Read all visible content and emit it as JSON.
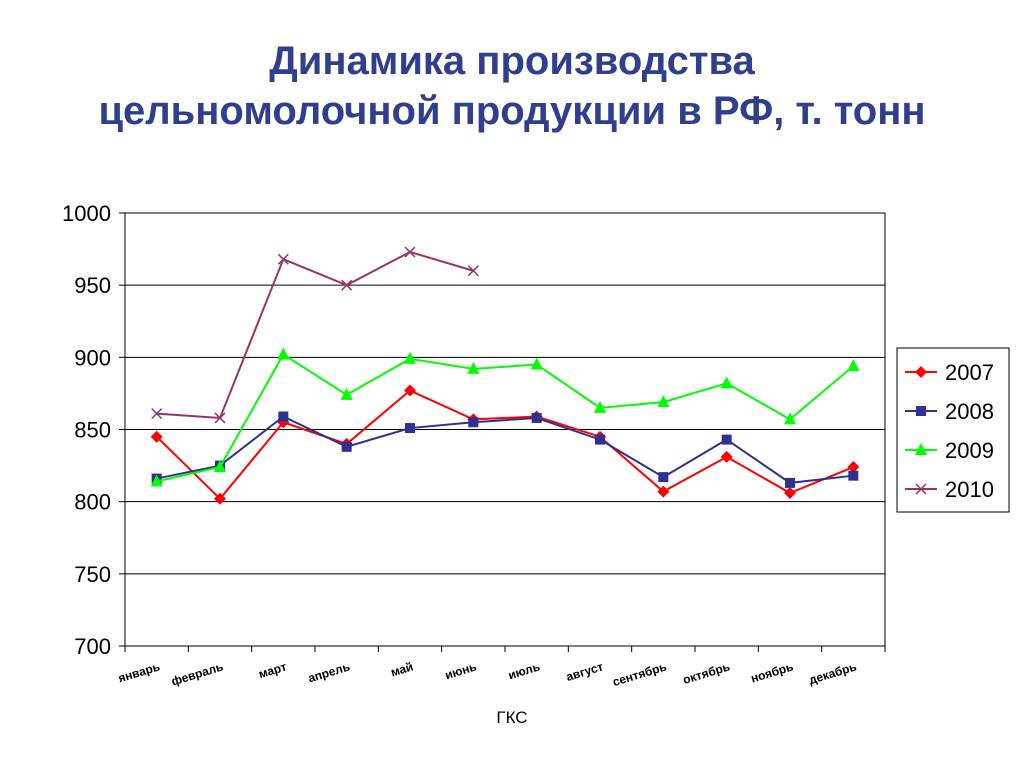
{
  "title_line1": "Динамика производства",
  "title_line2": "цельномолочной продукции в РФ, т. тонн",
  "source": "ГКС",
  "chart_data": {
    "type": "line",
    "title": "Динамика производства цельномолочной продукции в РФ, т. тонн",
    "xlabel": "",
    "ylabel": "",
    "ylim": [
      700,
      1000
    ],
    "yticks": [
      1000,
      950,
      900,
      850,
      800,
      750,
      700
    ],
    "grid": true,
    "legend_position": "right",
    "categories": [
      "январь",
      "февраль",
      "март",
      "апрель",
      "май",
      "июнь",
      "июль",
      "август",
      "сентябрь",
      "октябрь",
      "ноябрь",
      "декабрь"
    ],
    "series": [
      {
        "name": "2007",
        "color": "#ff0000",
        "marker": "diamond",
        "values": [
          845,
          802,
          855,
          840,
          877,
          857,
          859,
          845,
          807,
          831,
          806,
          824
        ]
      },
      {
        "name": "2008",
        "color": "#2e3192",
        "marker": "square",
        "values": [
          816,
          825,
          859,
          838,
          851,
          855,
          858,
          843,
          817,
          843,
          813,
          818
        ]
      },
      {
        "name": "2009",
        "color": "#00ff00",
        "marker": "triangle",
        "values": [
          814,
          824,
          902,
          874,
          899,
          892,
          895,
          865,
          869,
          882,
          857,
          894
        ]
      },
      {
        "name": "2010",
        "color": "#993366",
        "marker": "x",
        "values": [
          861,
          858,
          968,
          950,
          973,
          960,
          null,
          null,
          null,
          null,
          null,
          null
        ]
      }
    ]
  }
}
